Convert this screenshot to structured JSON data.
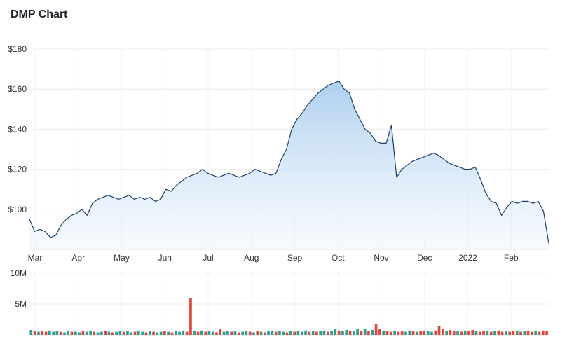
{
  "title": "DMP Chart",
  "chart_data": [
    {
      "type": "area",
      "title": "DMP Chart",
      "y_ticks": [
        {
          "value": 100,
          "label": "$100"
        },
        {
          "value": 120,
          "label": "$120"
        },
        {
          "value": 140,
          "label": "$140"
        },
        {
          "value": 160,
          "label": "$160"
        },
        {
          "value": 180,
          "label": "$180"
        }
      ],
      "ylim": [
        80,
        180
      ],
      "x_ticks": [
        "Mar",
        "Apr",
        "May",
        "Jun",
        "Jul",
        "Aug",
        "Sep",
        "Oct",
        "Nov",
        "Dec",
        "2022",
        "Feb"
      ],
      "grid": true,
      "line_color": "#1d3f6e",
      "fill_color_top": "#a9cdee",
      "fill_color_bottom": "#eef5fc",
      "series": [
        {
          "values": [
            95,
            89,
            90,
            89,
            86,
            87,
            92,
            95,
            97,
            98,
            100,
            97,
            103,
            105,
            106,
            107,
            106,
            105,
            106,
            107,
            105,
            106,
            105,
            106,
            104,
            105,
            110,
            109,
            112,
            114,
            116,
            117,
            118,
            120,
            118,
            117,
            116,
            117,
            118,
            117,
            116,
            117,
            118,
            120,
            119,
            118,
            117,
            118,
            125,
            130,
            140,
            145,
            148,
            152,
            155,
            158,
            160,
            162,
            163,
            164,
            160,
            158,
            150,
            145,
            140,
            138,
            134,
            133,
            133,
            142,
            116,
            120,
            122,
            124,
            125,
            126,
            127,
            128,
            127,
            125,
            123,
            122,
            121,
            120,
            120,
            121,
            115,
            108,
            104,
            103,
            97,
            101,
            104,
            103,
            104,
            104,
            103,
            104,
            99,
            83
          ]
        }
      ],
      "volume": {
        "y_ticks": [
          {
            "value": 5,
            "label": "5M"
          },
          {
            "value": 10,
            "label": "10M"
          }
        ],
        "ylim": [
          0,
          10
        ],
        "up_color": "#2e9e8f",
        "down_color": "#e0473f",
        "values": [
          0.8,
          0.6,
          0.5,
          0.6,
          0.5,
          0.7,
          0.5,
          0.6,
          0.5,
          0.4,
          0.6,
          0.5,
          0.5,
          0.4,
          0.6,
          0.5,
          0.7,
          0.5,
          0.4,
          0.5,
          0.6,
          0.5,
          0.4,
          0.5,
          0.6,
          0.5,
          0.6,
          0.4,
          0.5,
          0.6,
          0.5,
          0.4,
          0.6,
          0.5,
          0.4,
          0.5,
          0.6,
          0.5,
          0.4,
          0.6,
          0.5,
          0.7,
          0.5,
          6.0,
          0.6,
          0.5,
          0.7,
          0.5,
          0.6,
          0.5,
          0.4,
          0.9,
          0.5,
          0.6,
          0.5,
          0.6,
          0.4,
          0.5,
          0.6,
          0.5,
          0.4,
          0.6,
          0.5,
          0.4,
          0.6,
          0.7,
          0.5,
          0.6,
          0.5,
          0.4,
          0.6,
          0.5,
          0.6,
          0.5,
          0.7,
          0.5,
          0.6,
          0.5,
          0.6,
          0.7,
          0.5,
          0.6,
          0.9,
          0.7,
          0.6,
          0.8,
          0.7,
          0.6,
          0.9,
          0.6,
          1.0,
          0.6,
          0.8,
          1.7,
          0.9,
          0.7,
          0.6,
          0.5,
          0.7,
          0.5,
          0.6,
          0.5,
          0.7,
          0.6,
          0.5,
          0.6,
          0.7,
          0.6,
          0.5,
          0.7,
          1.4,
          1.0,
          0.6,
          0.8,
          0.7,
          0.6,
          0.5,
          0.7,
          0.6,
          0.8,
          0.6,
          0.5,
          0.7,
          0.6,
          0.5,
          0.6,
          0.7,
          0.5,
          0.6,
          0.5,
          0.6,
          0.7,
          0.5,
          0.6,
          0.7,
          0.5,
          0.6,
          0.5,
          0.7,
          0.6
        ],
        "down": [
          0,
          1,
          0,
          1,
          1,
          0,
          0,
          0,
          1,
          0,
          0,
          1,
          0,
          0,
          1,
          0,
          0,
          1,
          0,
          0,
          1,
          0,
          1,
          0,
          0,
          1,
          0,
          0,
          1,
          0,
          0,
          1,
          0,
          1,
          0,
          0,
          1,
          0,
          1,
          0,
          0,
          0,
          1,
          1,
          0,
          1,
          0,
          1,
          0,
          0,
          1,
          1,
          0,
          0,
          1,
          0,
          1,
          0,
          0,
          1,
          0,
          1,
          0,
          1,
          0,
          0,
          1,
          0,
          0,
          1,
          0,
          1,
          0,
          0,
          0,
          1,
          0,
          1,
          0,
          0,
          1,
          0,
          0,
          1,
          0,
          0,
          1,
          0,
          0,
          1,
          0,
          1,
          0,
          1,
          1,
          0,
          1,
          1,
          0,
          1,
          1,
          0,
          0,
          1,
          0,
          1,
          1,
          0,
          0,
          1,
          1,
          1,
          0,
          1,
          1,
          0,
          1,
          0,
          1,
          1,
          0,
          1,
          1,
          0,
          1,
          0,
          1,
          1,
          0,
          1,
          1,
          0,
          1,
          0,
          1,
          1,
          0,
          1,
          1,
          1
        ]
      }
    }
  ]
}
